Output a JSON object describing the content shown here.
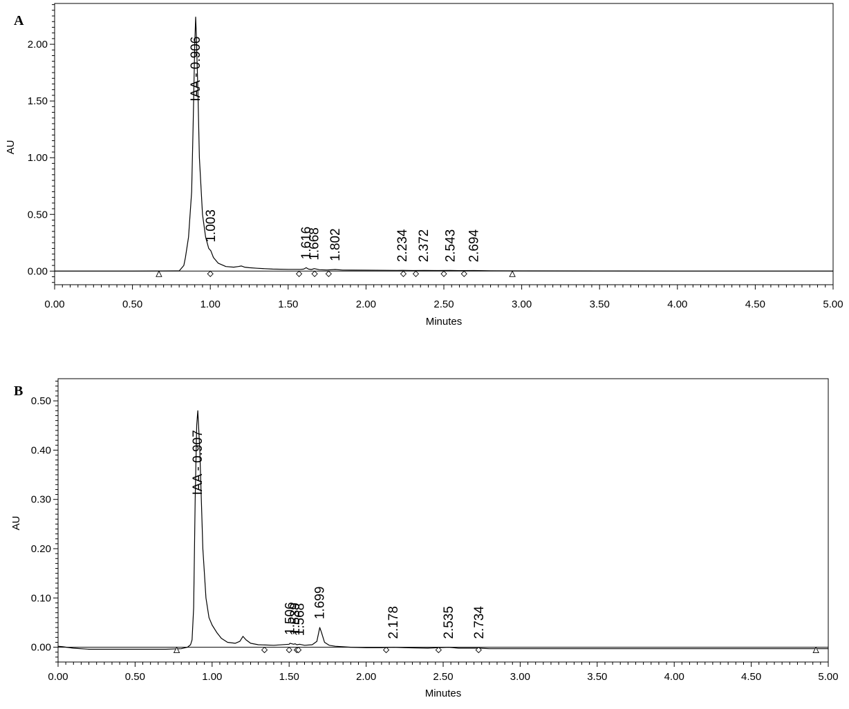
{
  "chart_data": [
    {
      "panel": "A",
      "type": "line",
      "xlabel": "Minutes",
      "ylabel": "AU",
      "xlim": [
        0,
        5
      ],
      "ylim": [
        -0.12,
        2.36
      ],
      "xticks": [
        "0.00",
        "0.50",
        "1.00",
        "1.50",
        "2.00",
        "2.50",
        "3.00",
        "3.50",
        "4.00",
        "4.50",
        "5.00"
      ],
      "yticks": [
        "0.00",
        "0.50",
        "1.00",
        "1.50",
        "2.00"
      ],
      "trace": {
        "x": [
          0.0,
          0.5,
          0.8,
          0.83,
          0.84,
          0.86,
          0.88,
          0.89,
          0.9,
          0.906,
          0.91,
          0.92,
          0.93,
          0.95,
          0.97,
          0.99,
          1.003,
          1.02,
          1.05,
          1.1,
          1.15,
          1.18,
          1.2,
          1.22,
          1.25,
          1.3,
          1.4,
          1.5,
          1.58,
          1.6,
          1.616,
          1.63,
          1.65,
          1.668,
          1.7,
          1.75,
          1.802,
          1.85,
          2.0,
          2.2,
          2.234,
          2.3,
          2.372,
          2.45,
          2.543,
          2.6,
          2.694,
          2.8,
          3.0,
          3.5,
          4.0,
          4.5,
          5.0
        ],
        "y": [
          0.0,
          0.0,
          0.002,
          0.05,
          0.12,
          0.3,
          0.7,
          1.3,
          2.0,
          2.24,
          2.1,
          1.6,
          1.0,
          0.5,
          0.3,
          0.2,
          0.18,
          0.12,
          0.07,
          0.04,
          0.035,
          0.04,
          0.045,
          0.035,
          0.03,
          0.025,
          0.018,
          0.015,
          0.015,
          0.018,
          0.03,
          0.018,
          0.014,
          0.022,
          0.012,
          0.01,
          0.014,
          0.009,
          0.008,
          0.006,
          0.007,
          0.005,
          0.006,
          0.005,
          0.006,
          0.004,
          0.005,
          0.003,
          0.002,
          0.001,
          0.0,
          0.0,
          0.0
        ]
      },
      "peaks": [
        {
          "rt": 0.906,
          "label": "IAA - 0.906",
          "y": 2.24
        },
        {
          "rt": 1.003,
          "label": "1.003",
          "y": 0.18
        },
        {
          "rt": 1.616,
          "label": "1.616",
          "y": 0.03
        },
        {
          "rt": 1.668,
          "label": "1.668",
          "y": 0.022
        },
        {
          "rt": 1.802,
          "label": "1.802",
          "y": 0.014
        },
        {
          "rt": 2.234,
          "label": "2.234",
          "y": 0.007
        },
        {
          "rt": 2.372,
          "label": "2.372",
          "y": 0.006
        },
        {
          "rt": 2.543,
          "label": "2.543",
          "y": 0.006
        },
        {
          "rt": 2.694,
          "label": "2.694",
          "y": 0.005
        }
      ],
      "start_end_markers": [
        0.67,
        2.94
      ],
      "boundary_markers": [
        1.0,
        1.57,
        1.67,
        1.76,
        2.24,
        2.32,
        2.5,
        2.63
      ]
    },
    {
      "panel": "B",
      "type": "line",
      "xlabel": "Minutes",
      "ylabel": "AU",
      "xlim": [
        0,
        5
      ],
      "ylim": [
        -0.03,
        0.545
      ],
      "xticks": [
        "0.00",
        "0.50",
        "1.00",
        "1.50",
        "2.00",
        "2.50",
        "3.00",
        "3.50",
        "4.00",
        "4.50",
        "5.00"
      ],
      "yticks": [
        "0.00",
        "0.10",
        "0.20",
        "0.30",
        "0.40",
        "0.50"
      ],
      "trace": {
        "x": [
          0.0,
          0.03,
          0.1,
          0.2,
          0.3,
          0.5,
          0.7,
          0.8,
          0.84,
          0.86,
          0.87,
          0.88,
          0.89,
          0.9,
          0.907,
          0.92,
          0.94,
          0.96,
          0.98,
          1.0,
          1.03,
          1.06,
          1.1,
          1.15,
          1.18,
          1.2,
          1.22,
          1.25,
          1.3,
          1.4,
          1.5,
          1.506,
          1.53,
          1.539,
          1.55,
          1.568,
          1.6,
          1.65,
          1.68,
          1.699,
          1.71,
          1.73,
          1.76,
          1.8,
          1.9,
          2.0,
          2.1,
          2.178,
          2.25,
          2.4,
          2.535,
          2.6,
          2.734,
          2.8,
          3.0,
          3.4,
          4.0,
          4.5,
          5.0
        ],
        "y": [
          0.002,
          0.001,
          -0.002,
          -0.004,
          -0.004,
          -0.004,
          -0.004,
          -0.003,
          0.0,
          0.005,
          0.015,
          0.08,
          0.3,
          0.45,
          0.48,
          0.4,
          0.2,
          0.1,
          0.06,
          0.045,
          0.03,
          0.018,
          0.01,
          0.008,
          0.012,
          0.022,
          0.015,
          0.008,
          0.005,
          0.004,
          0.006,
          0.008,
          0.006,
          0.007,
          0.005,
          0.006,
          0.004,
          0.005,
          0.012,
          0.04,
          0.03,
          0.01,
          0.004,
          0.002,
          0.0,
          -0.001,
          -0.001,
          0.0,
          -0.001,
          -0.002,
          0.0,
          -0.002,
          -0.002,
          -0.003,
          -0.003,
          -0.003,
          -0.003,
          -0.003,
          -0.003
        ]
      },
      "peaks": [
        {
          "rt": 0.907,
          "label": "IAA - 0.907",
          "y": 0.48
        },
        {
          "rt": 1.506,
          "label": "1.506",
          "y": 0.008
        },
        {
          "rt": 1.539,
          "label": "1.539",
          "y": 0.007
        },
        {
          "rt": 1.568,
          "label": "1.568",
          "y": 0.006
        },
        {
          "rt": 1.699,
          "label": "1.699",
          "y": 0.04
        },
        {
          "rt": 2.178,
          "label": "2.178",
          "y": 0.0
        },
        {
          "rt": 2.535,
          "label": "2.535",
          "y": 0.0
        },
        {
          "rt": 2.734,
          "label": "2.734",
          "y": -0.002
        }
      ],
      "start_end_markers": [
        0.77,
        4.92
      ],
      "boundary_markers": [
        1.34,
        1.5,
        1.55,
        1.56,
        2.13,
        2.47,
        2.73
      ]
    }
  ]
}
